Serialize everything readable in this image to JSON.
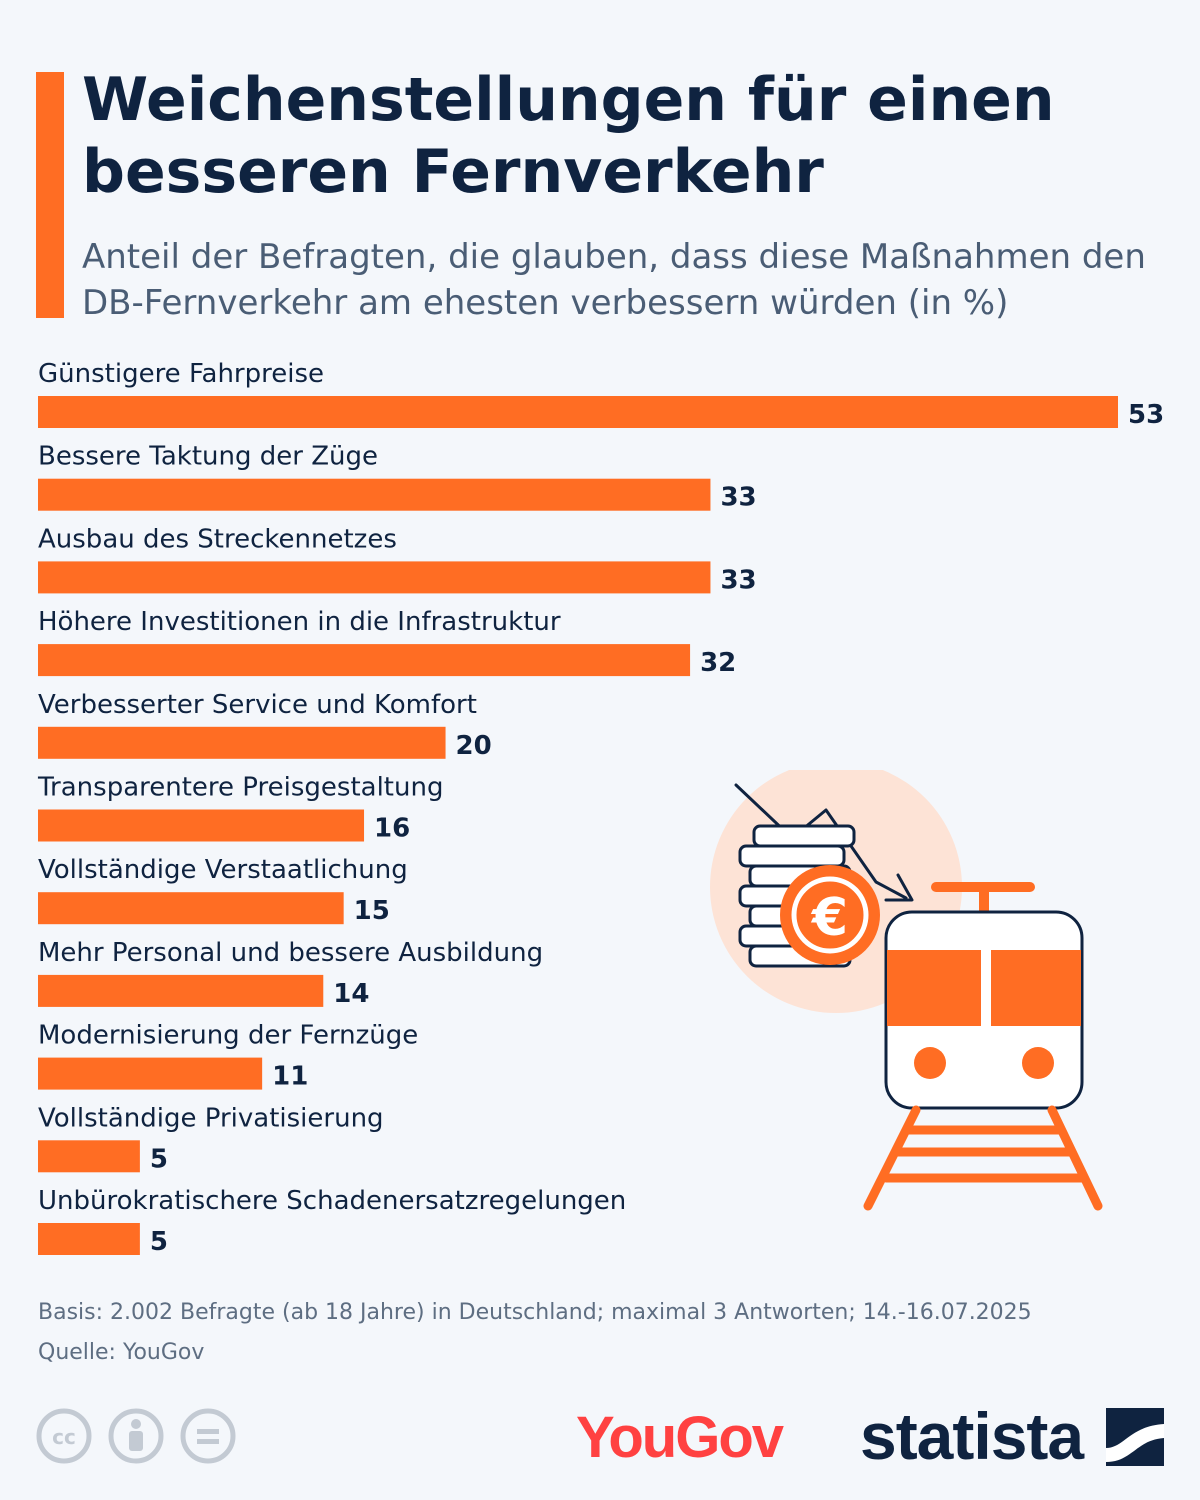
{
  "header": {
    "title": "Weichenstellungen für einen besseren Fernverkehr",
    "subtitle": "Anteil der Befragten, die glauben, dass diese Maßnahmen den DB-Fernverkehr am ehesten verbessern würden (in %)"
  },
  "chart_data": {
    "type": "bar",
    "orientation": "horizontal",
    "title": "Weichenstellungen für einen besseren Fernverkehr",
    "categories": [
      "Günstigere Fahrpreise",
      "Bessere Taktung der Züge",
      "Ausbau des Streckennetzes",
      "Höhere Investitionen in die Infrastruktur",
      "Verbesserter Service und Komfort",
      "Transparentere Preisgestaltung",
      "Vollständige Verstaatlichung",
      "Mehr Personal und bessere Ausbildung",
      "Modernisierung der Fernzüge",
      "Vollständige Privatisierung",
      "Unbürokratischere Schadenersatzregelungen"
    ],
    "values": [
      53,
      33,
      33,
      32,
      20,
      16,
      15,
      14,
      11,
      5,
      5
    ],
    "unit": "%",
    "xlim": [
      0,
      53
    ],
    "grid": false,
    "data_labels": true,
    "bar_color": "#ff6d23"
  },
  "footer": {
    "basis": "Basis: 2.002 Befragte (ab 18 Jahre) in Deutschland; maximal 3 Antworten; 14.-16.07.2025",
    "source": "Quelle: YouGov"
  },
  "brands": {
    "partner": "YouGov",
    "publisher": "statista"
  },
  "icons": [
    "cc-icon",
    "by-icon",
    "nd-icon",
    "statista-logo-icon",
    "euro-coins-train-illustration"
  ],
  "colors": {
    "accent": "#ff6d23",
    "text_dark": "#0f2340",
    "text_muted": "#4a5d75",
    "background": "#f4f7fb",
    "yougov_red": "#ff4141"
  }
}
